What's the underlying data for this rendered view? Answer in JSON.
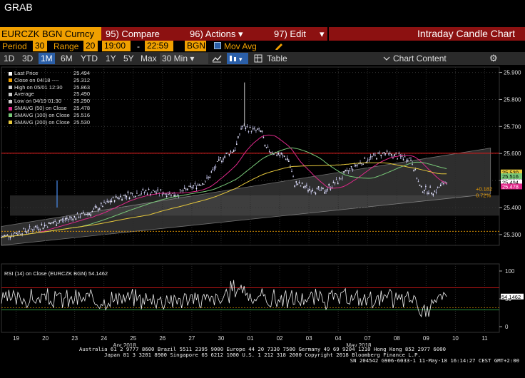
{
  "window_title": "GRAB",
  "toolbar": {
    "ticker": "EURCZK BGN Curncy",
    "compare": {
      "num": "95)",
      "label": "Compare"
    },
    "actions": {
      "num": "96)",
      "label": "Actions",
      "arrow": "▾"
    },
    "edit": {
      "num": "97)",
      "label": "Edit",
      "arrow": "▾"
    },
    "title": "Intraday Candle Chart"
  },
  "settings": {
    "period_label": "Period",
    "period_value": "30",
    "range_label": "Range",
    "range_value": "20",
    "time_from": "19:00",
    "dash": "-",
    "time_to": "22:59",
    "source": "BGN",
    "mov_avg_label": "Mov Avg"
  },
  "tabs": [
    "1D",
    "3D",
    "1M",
    "6M",
    "YTD",
    "1Y",
    "5Y",
    "Max"
  ],
  "selected_tab": "1M",
  "interval": "30 Min",
  "interval_arrow": "▾",
  "table_label": "Table",
  "chart_content_label": "Chart Content",
  "icons": [
    "line-chart-icon",
    "chart-type-icon",
    "pencil-icon",
    "checkbox-icon",
    "gear-icon",
    "close-icon"
  ],
  "colors": {
    "accent": "#f0a000",
    "bar": "#8c1111",
    "tab_selected": "#2b5fa8",
    "sma50": "#e0288a",
    "sma100": "#78c878",
    "sma200": "#e6c83c",
    "resistance": "#d41a1a"
  },
  "legend": [
    {
      "swatch": "#ffffff",
      "label": "Last Price",
      "value": "25.494"
    },
    {
      "swatch": "#f0a000",
      "label": "Close on 04/18 ----",
      "value": "25.312"
    },
    {
      "swatch": "#cccccc",
      "label": "High on 05/01 12:30",
      "value": "25.863"
    },
    {
      "swatch": "#cccccc",
      "label": "Average",
      "value": "25.490"
    },
    {
      "swatch": "#cccccc",
      "label": "Low on 04/19 01:30",
      "value": "25.290"
    },
    {
      "swatch": "#e0288a",
      "label": "SMAVG (50) on Close",
      "value": "25.478"
    },
    {
      "swatch": "#78c878",
      "label": "SMAVG (100) on Close",
      "value": "25.516"
    },
    {
      "swatch": "#e6c83c",
      "label": "SMAVG (200) on Close",
      "value": "25.530"
    }
  ],
  "rsi_legend": "RSI (14) on Close (EURCZK BGN) 54.1462",
  "chart_data": [
    {
      "type": "line",
      "subtype": "candlestick",
      "title": "Intraday Candle Chart",
      "ylim": [
        25.26,
        25.92
      ],
      "yticks": [
        25.3,
        25.4,
        25.5,
        25.6,
        25.7,
        25.8,
        25.9
      ],
      "x_day_labels": [
        "19",
        "20",
        "23",
        "24",
        "25",
        "26",
        "27",
        "30",
        "01",
        "02",
        "03",
        "04",
        "07",
        "08",
        "09",
        "10",
        "11"
      ],
      "x_month_labels": [
        "Apr 2018",
        "May 2018"
      ],
      "price_path": [
        [
          0,
          25.29
        ],
        [
          1,
          25.32
        ],
        [
          2,
          25.35
        ],
        [
          3,
          25.38
        ],
        [
          4,
          25.44
        ],
        [
          5,
          25.46
        ],
        [
          6,
          25.45
        ],
        [
          7,
          25.5
        ],
        [
          7.5,
          25.58
        ],
        [
          8,
          25.62
        ],
        [
          8.2,
          25.7
        ],
        [
          8.5,
          25.69
        ],
        [
          8.9,
          25.68
        ],
        [
          9,
          25.62
        ],
        [
          9.8,
          25.58
        ],
        [
          10,
          25.49
        ],
        [
          10.5,
          25.47
        ],
        [
          11,
          25.46
        ],
        [
          11.5,
          25.5
        ],
        [
          12,
          25.55
        ],
        [
          12.5,
          25.58
        ],
        [
          13,
          25.6
        ],
        [
          14,
          25.58
        ],
        [
          14.3,
          25.47
        ],
        [
          14.8,
          25.46
        ],
        [
          15.2,
          25.5
        ]
      ],
      "series": [
        {
          "name": "SMAVG (50) on Close",
          "last": 25.478
        },
        {
          "name": "SMAVG (100) on Close",
          "last": 25.516
        },
        {
          "name": "SMAVG (200) on Close",
          "last": 25.53
        }
      ],
      "horizontal_lines": [
        {
          "label": "Close on 04/18",
          "value": 25.312
        },
        {
          "label": "resistance",
          "value": 25.601
        }
      ],
      "price_labels": [
        "25.530",
        "25.516",
        "25.494",
        "25.478"
      ],
      "annotations": [
        "+0.182",
        "0.72%"
      ]
    },
    {
      "type": "line",
      "title": "RSI (14) on Close (EURCZK BGN) 54.1462",
      "ylim": [
        0,
        100
      ],
      "yticks": [
        0,
        50,
        100
      ],
      "levels": [
        70,
        30
      ],
      "last": "54.1462"
    }
  ],
  "footer": {
    "line1": "Australia 61 2 9777 8600 Brazil 5511 2395 9000 Europe 44 20 7330 7500 Germany 49 69 9204 1210 Hong Kong 852 2977 6000",
    "line2": "Japan 81 3 3201 8900         Singapore 65 6212 1000        U.S. 1 212 318 2000              Copyright 2018 Bloomberg Finance L.P.",
    "line3": "SN 204542 G906-6033-1 11-May-18 16:14:27 CEST GMT+2:00"
  }
}
